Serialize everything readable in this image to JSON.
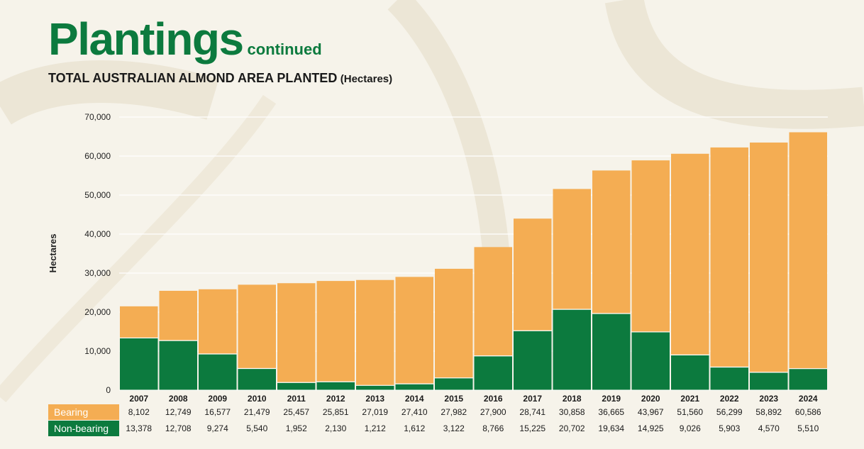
{
  "header": {
    "title": "Plantings",
    "subtitle": "continued"
  },
  "chart_data": {
    "type": "bar",
    "stacked": true,
    "title": "TOTAL AUSTRALIAN ALMOND AREA PLANTED",
    "title_unit": "(Hectares)",
    "ylabel": "Hectares",
    "ylim": [
      0,
      70000
    ],
    "yticks": [
      "0",
      "10,000",
      "20,000",
      "30,000",
      "40,000",
      "50,000",
      "60,000",
      "70,000"
    ],
    "grid": true,
    "categories": [
      "2007",
      "2008",
      "2009",
      "2010",
      "2011",
      "2012",
      "2013",
      "2014",
      "2015",
      "2016",
      "2017",
      "2018",
      "2019",
      "2020",
      "2021",
      "2022",
      "2023",
      "2024"
    ],
    "series": [
      {
        "name": "Non-bearing",
        "color": "#0c7a3e",
        "values": [
          13378,
          12708,
          9274,
          5540,
          1952,
          2130,
          1212,
          1612,
          3122,
          8766,
          15225,
          20702,
          19634,
          14925,
          9026,
          5903,
          4570,
          5510
        ],
        "labels": [
          "13,378",
          "12,708",
          "9,274",
          "5,540",
          "1,952",
          "2,130",
          "1,212",
          "1,612",
          "3,122",
          "8,766",
          "15,225",
          "20,702",
          "19,634",
          "14,925",
          "9,026",
          "5,903",
          "4,570",
          "5,510"
        ]
      },
      {
        "name": "Bearing",
        "color": "#f4ad53",
        "values": [
          8102,
          12749,
          16577,
          21479,
          25457,
          25851,
          27019,
          27410,
          27982,
          27900,
          28741,
          30858,
          36665,
          43967,
          51560,
          56299,
          58892,
          60586
        ],
        "labels": [
          "8,102",
          "12,749",
          "16,577",
          "21,479",
          "25,457",
          "25,851",
          "27,019",
          "27,410",
          "27,982",
          "27,900",
          "28,741",
          "30,858",
          "36,665",
          "43,967",
          "51,560",
          "56,299",
          "58,892",
          "60,586"
        ]
      }
    ]
  }
}
